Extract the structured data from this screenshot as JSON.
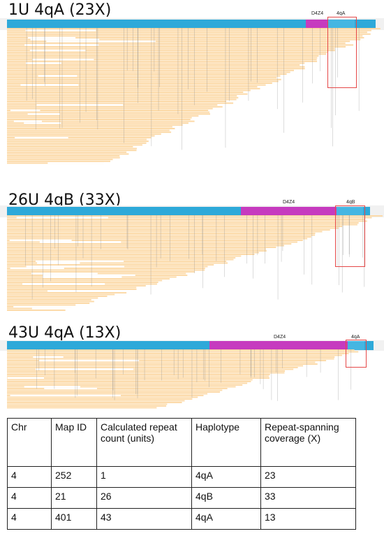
{
  "panels": [
    {
      "title": "1U 4qA (23X)",
      "d4z4_label": "D4Z4",
      "haplotype_label": "4qA"
    },
    {
      "title": "26U 4qB (33X)",
      "d4z4_label": "D4Z4",
      "haplotype_label": "4qB"
    },
    {
      "title": "43U 4qA (13X)",
      "d4z4_label": "D4Z4",
      "haplotype_label": "4qA"
    }
  ],
  "colors": {
    "reference_bar": "#2ea9d9",
    "d4z4": "#c63bbf",
    "reads": "#fcd9a6",
    "highlight_box": "#e54848"
  },
  "table": {
    "headers": [
      "Chr",
      "Map ID",
      "Calculated repeat count (units)",
      "Haplotype",
      "Repeat-spanning coverage (X)"
    ],
    "rows": [
      [
        "4",
        "252",
        "1",
        "4qA",
        "23"
      ],
      [
        "4",
        "21",
        "26",
        "4qB",
        "33"
      ],
      [
        "4",
        "401",
        "43",
        "4qA",
        "13"
      ]
    ]
  }
}
